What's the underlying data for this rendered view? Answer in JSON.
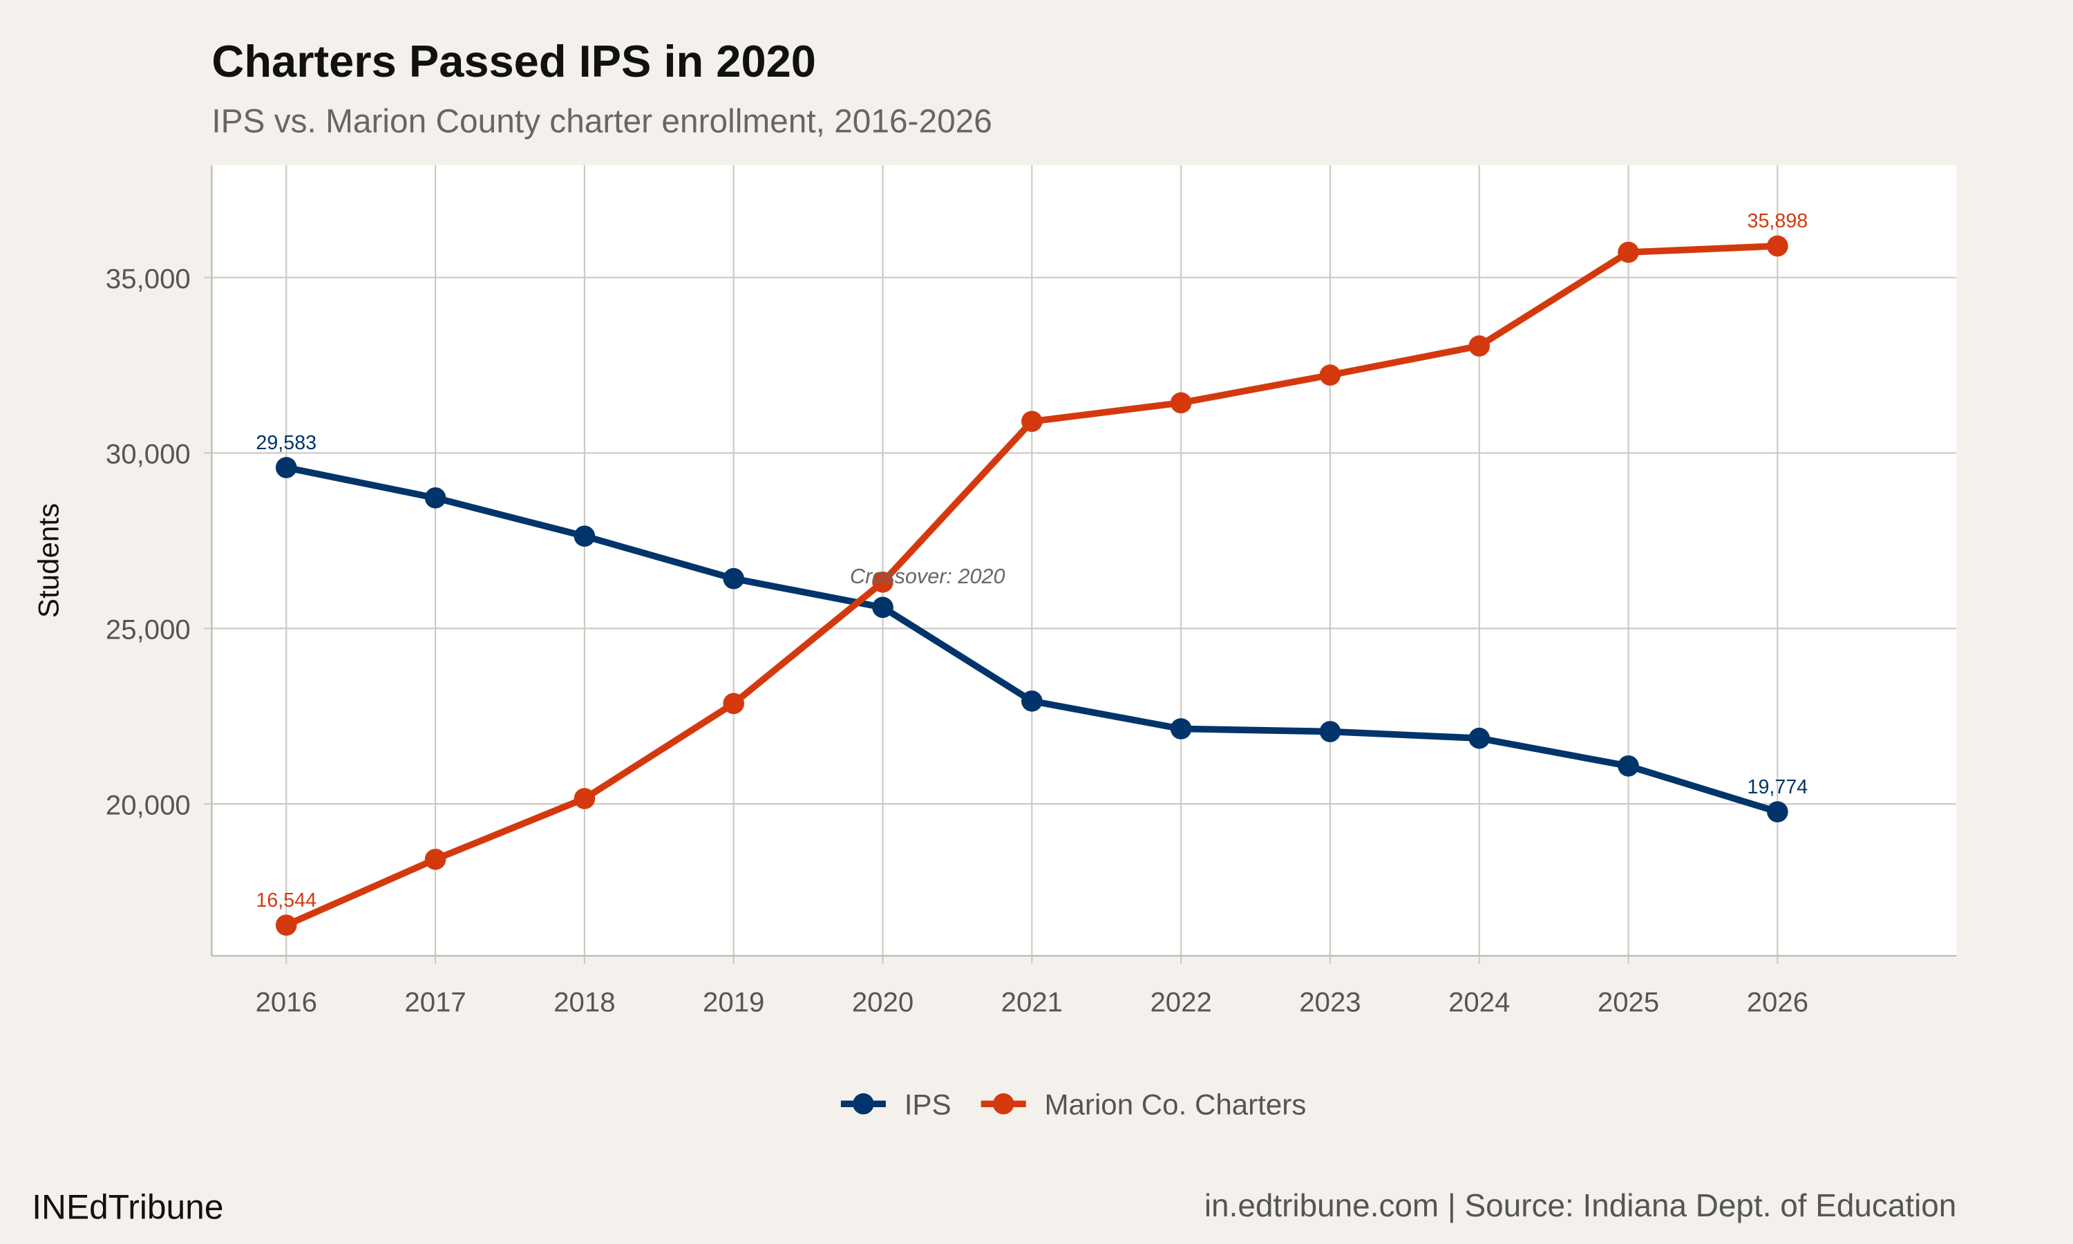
{
  "chart_data": {
    "type": "line",
    "title": "Charters Passed IPS in 2020",
    "subtitle": "IPS vs. Marion County charter enrollment, 2016-2026",
    "xlabel": "",
    "ylabel": "Students",
    "x": [
      2016,
      2017,
      2018,
      2019,
      2020,
      2021,
      2022,
      2023,
      2024,
      2025,
      2026
    ],
    "x_ticks": [
      "2016",
      "2017",
      "2018",
      "2019",
      "2020",
      "2021",
      "2022",
      "2023",
      "2024",
      "2025",
      "2026"
    ],
    "y_ticks": [
      "20,000",
      "25,000",
      "30,000",
      "35,000"
    ],
    "y_tick_values": [
      20000,
      25000,
      30000,
      35000
    ],
    "xlim": [
      2015.5,
      2027.2
    ],
    "ylim": [
      15670,
      38200
    ],
    "grid": true,
    "legend_position": "bottom",
    "series": [
      {
        "name": "IPS",
        "color": "#00346a",
        "values": [
          29583,
          28720,
          27630,
          26420,
          25600,
          22930,
          22140,
          22060,
          21870,
          21080,
          19774
        ],
        "end_labels": [
          "29,583",
          "19,774"
        ]
      },
      {
        "name": "Marion Co. Charters",
        "color": "#d4390e",
        "values": [
          16544,
          18420,
          20150,
          22860,
          26320,
          30900,
          31430,
          32220,
          33050,
          35720,
          35898
        ],
        "end_labels": [
          "16,544",
          "35,898"
        ]
      }
    ],
    "annotations": [
      {
        "text": "Crossover: 2020",
        "x": 2020.3,
        "y": 26400
      }
    ]
  },
  "footer": {
    "brand": "INEdTribune",
    "caption": "in.edtribune.com | Source: Indiana Dept. of Education"
  },
  "colors": {
    "background": "#f4f1ed",
    "panel": "#ffffff",
    "grid": "#cdc8c0"
  }
}
